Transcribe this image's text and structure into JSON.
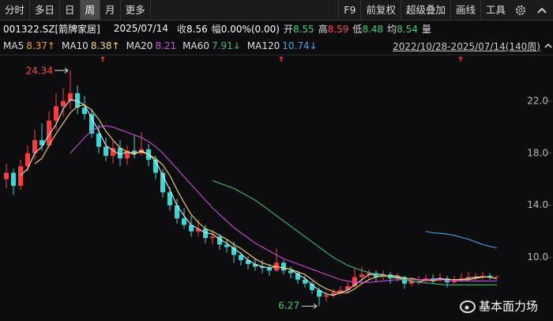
{
  "toolbar": {
    "tabs": [
      "分时",
      "多日",
      "日",
      "周",
      "月",
      "更多"
    ],
    "active_tab": 3,
    "tools": [
      "F9",
      "前复权",
      "超级叠加",
      "画线",
      "工具"
    ]
  },
  "quote": {
    "code": "001322.SZ[箭牌家居]",
    "date": "2025/07/14",
    "close_label": "收",
    "close": 8.56,
    "change_label": "幅",
    "change": "0.00%(0.00)",
    "open_label": "开",
    "open": 8.55,
    "high_label": "高",
    "high": 8.59,
    "low_label": "低",
    "low": 8.48,
    "avg_label": "均",
    "avg": 8.54,
    "volume_label": "量"
  },
  "watermark": "基本面力场",
  "chart_data": {
    "type": "candlestick",
    "range": "2022/10/28-2025/07/14(140周)",
    "up_color": "#ff3b3b",
    "down_color": "#3ad7d7",
    "ylim": [
      5.8,
      25.2
    ],
    "yticks": [
      {
        "value": 10,
        "label": "10.0"
      },
      {
        "value": 14,
        "label": "14.0"
      },
      {
        "value": 18,
        "label": "18.0"
      },
      {
        "value": 22,
        "label": "22.0"
      }
    ],
    "candles": [
      [
        16.0,
        17.2,
        15.3,
        16.5
      ],
      [
        16.5,
        16.8,
        14.8,
        15.5
      ],
      [
        15.5,
        17.5,
        15.2,
        17.0
      ],
      [
        17.0,
        18.6,
        16.6,
        18.0
      ],
      [
        18.0,
        19.8,
        17.5,
        19.0
      ],
      [
        19.0,
        20.3,
        18.2,
        18.6
      ],
      [
        18.6,
        21.2,
        18.4,
        20.5
      ],
      [
        20.5,
        22.6,
        19.8,
        21.6
      ],
      [
        21.6,
        23.0,
        20.8,
        22.0
      ],
      [
        22.0,
        24.34,
        21.4,
        22.6
      ],
      [
        22.6,
        23.2,
        21.0,
        21.5
      ],
      [
        21.5,
        22.4,
        20.6,
        21.0
      ],
      [
        21.0,
        21.4,
        19.2,
        19.5
      ],
      [
        19.5,
        20.2,
        18.0,
        18.5
      ],
      [
        18.5,
        19.2,
        17.4,
        17.8
      ],
      [
        17.8,
        18.9,
        17.2,
        18.4
      ],
      [
        18.4,
        19.0,
        17.0,
        17.6
      ],
      [
        17.6,
        18.6,
        17.1,
        18.2
      ],
      [
        18.2,
        19.4,
        17.6,
        18.0
      ],
      [
        18.0,
        19.6,
        17.8,
        18.3
      ],
      [
        18.3,
        18.7,
        17.0,
        17.5
      ],
      [
        17.5,
        17.8,
        16.0,
        16.5
      ],
      [
        16.5,
        16.8,
        14.6,
        15.0
      ],
      [
        15.0,
        15.4,
        13.6,
        14.0
      ],
      [
        14.0,
        14.5,
        12.6,
        13.0
      ],
      [
        13.0,
        13.8,
        12.2,
        12.5
      ],
      [
        12.5,
        13.2,
        11.6,
        12.0
      ],
      [
        12.0,
        12.9,
        11.6,
        12.2
      ],
      [
        12.2,
        12.5,
        11.1,
        11.5
      ],
      [
        11.5,
        12.1,
        11.0,
        11.6
      ],
      [
        11.6,
        11.8,
        10.6,
        11.0
      ],
      [
        11.0,
        11.4,
        10.4,
        10.8
      ],
      [
        10.8,
        11.2,
        9.6,
        10.2
      ],
      [
        10.2,
        10.4,
        9.4,
        9.8
      ],
      [
        9.8,
        10.1,
        9.1,
        9.5
      ],
      [
        9.5,
        9.9,
        9.0,
        9.3
      ],
      [
        9.3,
        9.8,
        8.8,
        9.2
      ],
      [
        9.2,
        9.5,
        8.6,
        9.0
      ],
      [
        9.0,
        10.7,
        8.9,
        9.6
      ],
      [
        9.6,
        9.8,
        8.7,
        9.0
      ],
      [
        9.0,
        9.3,
        8.4,
        8.8
      ],
      [
        8.8,
        9.0,
        8.0,
        8.3
      ],
      [
        8.3,
        8.6,
        7.7,
        8.0
      ],
      [
        8.0,
        8.2,
        7.2,
        7.5
      ],
      [
        7.5,
        7.7,
        6.27,
        7.0
      ],
      [
        7.0,
        7.4,
        6.6,
        7.1
      ],
      [
        7.1,
        7.6,
        6.9,
        7.3
      ],
      [
        7.3,
        7.8,
        7.1,
        7.5
      ],
      [
        7.5,
        8.1,
        7.3,
        7.8
      ],
      [
        7.8,
        9.2,
        7.7,
        8.5
      ],
      [
        8.5,
        9.3,
        8.2,
        8.7
      ],
      [
        8.7,
        9.1,
        8.3,
        8.8
      ],
      [
        8.8,
        9.0,
        8.1,
        8.5
      ],
      [
        8.5,
        9.0,
        8.3,
        8.7
      ],
      [
        8.7,
        8.9,
        8.0,
        8.4
      ],
      [
        8.4,
        8.8,
        8.1,
        8.5
      ],
      [
        8.5,
        8.6,
        7.6,
        8.0
      ],
      [
        8.0,
        8.5,
        7.8,
        8.2
      ],
      [
        8.2,
        8.6,
        7.9,
        8.2
      ],
      [
        8.2,
        8.7,
        8.0,
        8.4
      ],
      [
        8.4,
        8.7,
        8.0,
        8.3
      ],
      [
        8.3,
        8.8,
        8.1,
        8.4
      ],
      [
        8.4,
        8.6,
        7.7,
        8.1
      ],
      [
        8.1,
        8.6,
        8.0,
        8.3
      ],
      [
        8.3,
        8.8,
        8.2,
        8.4
      ],
      [
        8.4,
        8.9,
        8.2,
        8.5
      ],
      [
        8.5,
        8.8,
        8.2,
        8.5
      ],
      [
        8.5,
        8.9,
        8.3,
        8.6
      ],
      [
        8.6,
        8.8,
        8.3,
        8.5
      ],
      [
        8.55,
        8.59,
        8.48,
        8.56
      ]
    ],
    "series": [
      {
        "name": "MA5",
        "color": "#e8e8e8",
        "label_color": "#f0a030",
        "value": 8.37,
        "value_label": "8.37↑",
        "values": [
          null,
          null,
          16.3,
          16.8,
          18.0,
          18.5,
          19.4,
          20.2,
          21.4,
          22.1,
          22.0,
          21.7,
          20.7,
          19.7,
          18.6,
          18.2,
          17.9,
          18.1,
          17.9,
          18.2,
          17.9,
          17.4,
          16.3,
          15.2,
          14.0,
          13.2,
          12.5,
          12.2,
          11.9,
          11.8,
          11.4,
          11.1,
          10.7,
          10.3,
          9.8,
          9.5,
          9.3,
          9.2,
          9.3,
          9.2,
          9.1,
          8.7,
          8.4,
          7.9,
          7.5,
          7.2,
          7.1,
          7.3,
          7.5,
          7.9,
          8.3,
          8.7,
          8.7,
          8.7,
          8.5,
          8.5,
          8.3,
          8.2,
          8.1,
          8.3,
          8.3,
          8.4,
          8.3,
          8.3,
          8.3,
          8.4,
          8.5,
          8.5,
          8.5,
          8.37
        ]
      },
      {
        "name": "MA10",
        "color": "#f5d76e",
        "label_color": "#f5d76e",
        "value": 8.38,
        "value_label": "8.38↑",
        "values": [
          null,
          null,
          null,
          null,
          17.2,
          17.6,
          18.6,
          19.5,
          20.3,
          21.1,
          21.6,
          21.7,
          21.3,
          20.6,
          19.7,
          19.0,
          18.4,
          18.1,
          18.0,
          18.1,
          17.9,
          17.6,
          17.1,
          16.3,
          15.2,
          14.2,
          13.3,
          12.7,
          12.2,
          12.0,
          11.7,
          11.4,
          11.0,
          10.7,
          10.3,
          9.9,
          9.6,
          9.4,
          9.3,
          9.2,
          9.1,
          8.9,
          8.7,
          8.3,
          7.9,
          7.6,
          7.4,
          7.3,
          7.3,
          7.6,
          8.0,
          8.3,
          8.5,
          8.6,
          8.6,
          8.6,
          8.4,
          8.4,
          8.3,
          8.3,
          8.2,
          8.3,
          8.3,
          8.3,
          8.3,
          8.3,
          8.4,
          8.5,
          8.5,
          8.38
        ]
      },
      {
        "name": "MA20",
        "color": "#c84fd8",
        "label_color": "#c84fd8",
        "value": 8.21,
        "value_label": "8.21",
        "values": [
          null,
          null,
          null,
          null,
          null,
          null,
          null,
          null,
          null,
          18.0,
          18.6,
          19.2,
          19.7,
          20.0,
          20.1,
          20.0,
          19.8,
          19.6,
          19.4,
          19.2,
          18.9,
          18.5,
          18.0,
          17.4,
          16.8,
          16.2,
          15.6,
          15.0,
          14.4,
          13.8,
          13.3,
          12.8,
          12.3,
          11.9,
          11.5,
          11.1,
          10.8,
          10.5,
          10.2,
          9.9,
          9.7,
          9.5,
          9.3,
          9.1,
          8.9,
          8.7,
          8.5,
          8.3,
          8.2,
          8.1,
          8.1,
          8.1,
          8.15,
          8.2,
          8.25,
          8.3,
          8.3,
          8.3,
          8.3,
          8.3,
          8.3,
          8.3,
          8.25,
          8.25,
          8.2,
          8.2,
          8.2,
          8.2,
          8.2,
          8.21
        ]
      },
      {
        "name": "MA60",
        "color": "#3cb878",
        "label_color": "#3cb878",
        "value": 7.91,
        "value_label": "7.91↓",
        "values": [
          null,
          null,
          null,
          null,
          null,
          null,
          null,
          null,
          null,
          null,
          null,
          null,
          null,
          null,
          null,
          null,
          null,
          null,
          null,
          null,
          null,
          null,
          null,
          null,
          null,
          null,
          null,
          null,
          null,
          15.9,
          15.7,
          15.5,
          15.3,
          15.0,
          14.7,
          14.4,
          14.0,
          13.6,
          13.2,
          12.8,
          12.4,
          12.0,
          11.6,
          11.2,
          10.8,
          10.4,
          10.0,
          9.7,
          9.4,
          9.2,
          9.0,
          8.85,
          8.7,
          8.6,
          8.5,
          8.4,
          8.3,
          8.2,
          8.1,
          8.05,
          8.0,
          7.95,
          7.9,
          7.9,
          7.9,
          7.9,
          7.9,
          7.9,
          7.9,
          7.91
        ]
      },
      {
        "name": "MA120",
        "color": "#4aa3df",
        "label_color": "#4aa3df",
        "value": 10.74,
        "value_label": "10.74↓",
        "values": [
          null,
          null,
          null,
          null,
          null,
          null,
          null,
          null,
          null,
          null,
          null,
          null,
          null,
          null,
          null,
          null,
          null,
          null,
          null,
          null,
          null,
          null,
          null,
          null,
          null,
          null,
          null,
          null,
          null,
          null,
          null,
          null,
          null,
          null,
          null,
          null,
          null,
          null,
          null,
          null,
          null,
          null,
          null,
          null,
          null,
          null,
          null,
          null,
          null,
          null,
          null,
          null,
          null,
          null,
          null,
          null,
          null,
          null,
          null,
          12.0,
          11.9,
          11.85,
          11.8,
          11.7,
          11.55,
          11.4,
          11.2,
          11.0,
          10.85,
          10.74
        ]
      }
    ]
  }
}
